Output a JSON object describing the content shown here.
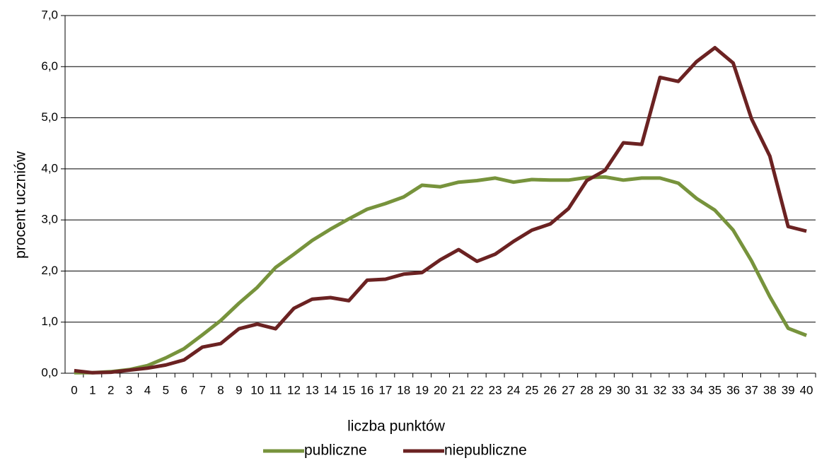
{
  "chart_data": {
    "type": "line",
    "x_label": "liczba punktów",
    "y_label": "procent uczniów",
    "categories": [
      "0",
      "1",
      "2",
      "3",
      "4",
      "5",
      "6",
      "7",
      "8",
      "9",
      "10",
      "11",
      "12",
      "13",
      "14",
      "15",
      "16",
      "17",
      "18",
      "19",
      "20",
      "21",
      "22",
      "23",
      "24",
      "25",
      "26",
      "27",
      "28",
      "29",
      "30",
      "31",
      "32",
      "33",
      "34",
      "35",
      "36",
      "37",
      "38",
      "39",
      "40"
    ],
    "series": [
      {
        "name": "publiczne",
        "color": "#77933c",
        "values": [
          0.01,
          0.01,
          0.03,
          0.07,
          0.15,
          0.3,
          0.48,
          0.75,
          1.03,
          1.37,
          1.68,
          2.07,
          2.33,
          2.6,
          2.82,
          3.02,
          3.21,
          3.32,
          3.45,
          3.68,
          3.65,
          3.74,
          3.77,
          3.82,
          3.74,
          3.79,
          3.78,
          3.78,
          3.83,
          3.84,
          3.78,
          3.82,
          3.82,
          3.72,
          3.42,
          3.19,
          2.8,
          2.2,
          1.5,
          0.88,
          0.74
        ]
      },
      {
        "name": "niepubliczne",
        "color": "#6b2222",
        "values": [
          0.05,
          0.01,
          0.02,
          0.06,
          0.1,
          0.16,
          0.26,
          0.51,
          0.58,
          0.87,
          0.96,
          0.87,
          1.27,
          1.45,
          1.48,
          1.42,
          1.82,
          1.84,
          1.94,
          1.97,
          2.22,
          2.42,
          2.19,
          2.33,
          2.58,
          2.8,
          2.92,
          3.22,
          3.77,
          3.97,
          4.51,
          4.48,
          5.79,
          5.71,
          6.1,
          6.37,
          6.07,
          4.98,
          4.25,
          2.87,
          2.78
        ]
      }
    ],
    "ylim": [
      0,
      7
    ],
    "yticks": [
      {
        "value": 0,
        "label": "0,0"
      },
      {
        "value": 1,
        "label": "1,0"
      },
      {
        "value": 2,
        "label": "2,0"
      },
      {
        "value": 3,
        "label": "3,0"
      },
      {
        "value": 4,
        "label": "4,0"
      },
      {
        "value": 5,
        "label": "5,0"
      },
      {
        "value": 6,
        "label": "6,0"
      },
      {
        "value": 7,
        "label": "7,0"
      }
    ],
    "grid": true,
    "legend": "bottom"
  }
}
